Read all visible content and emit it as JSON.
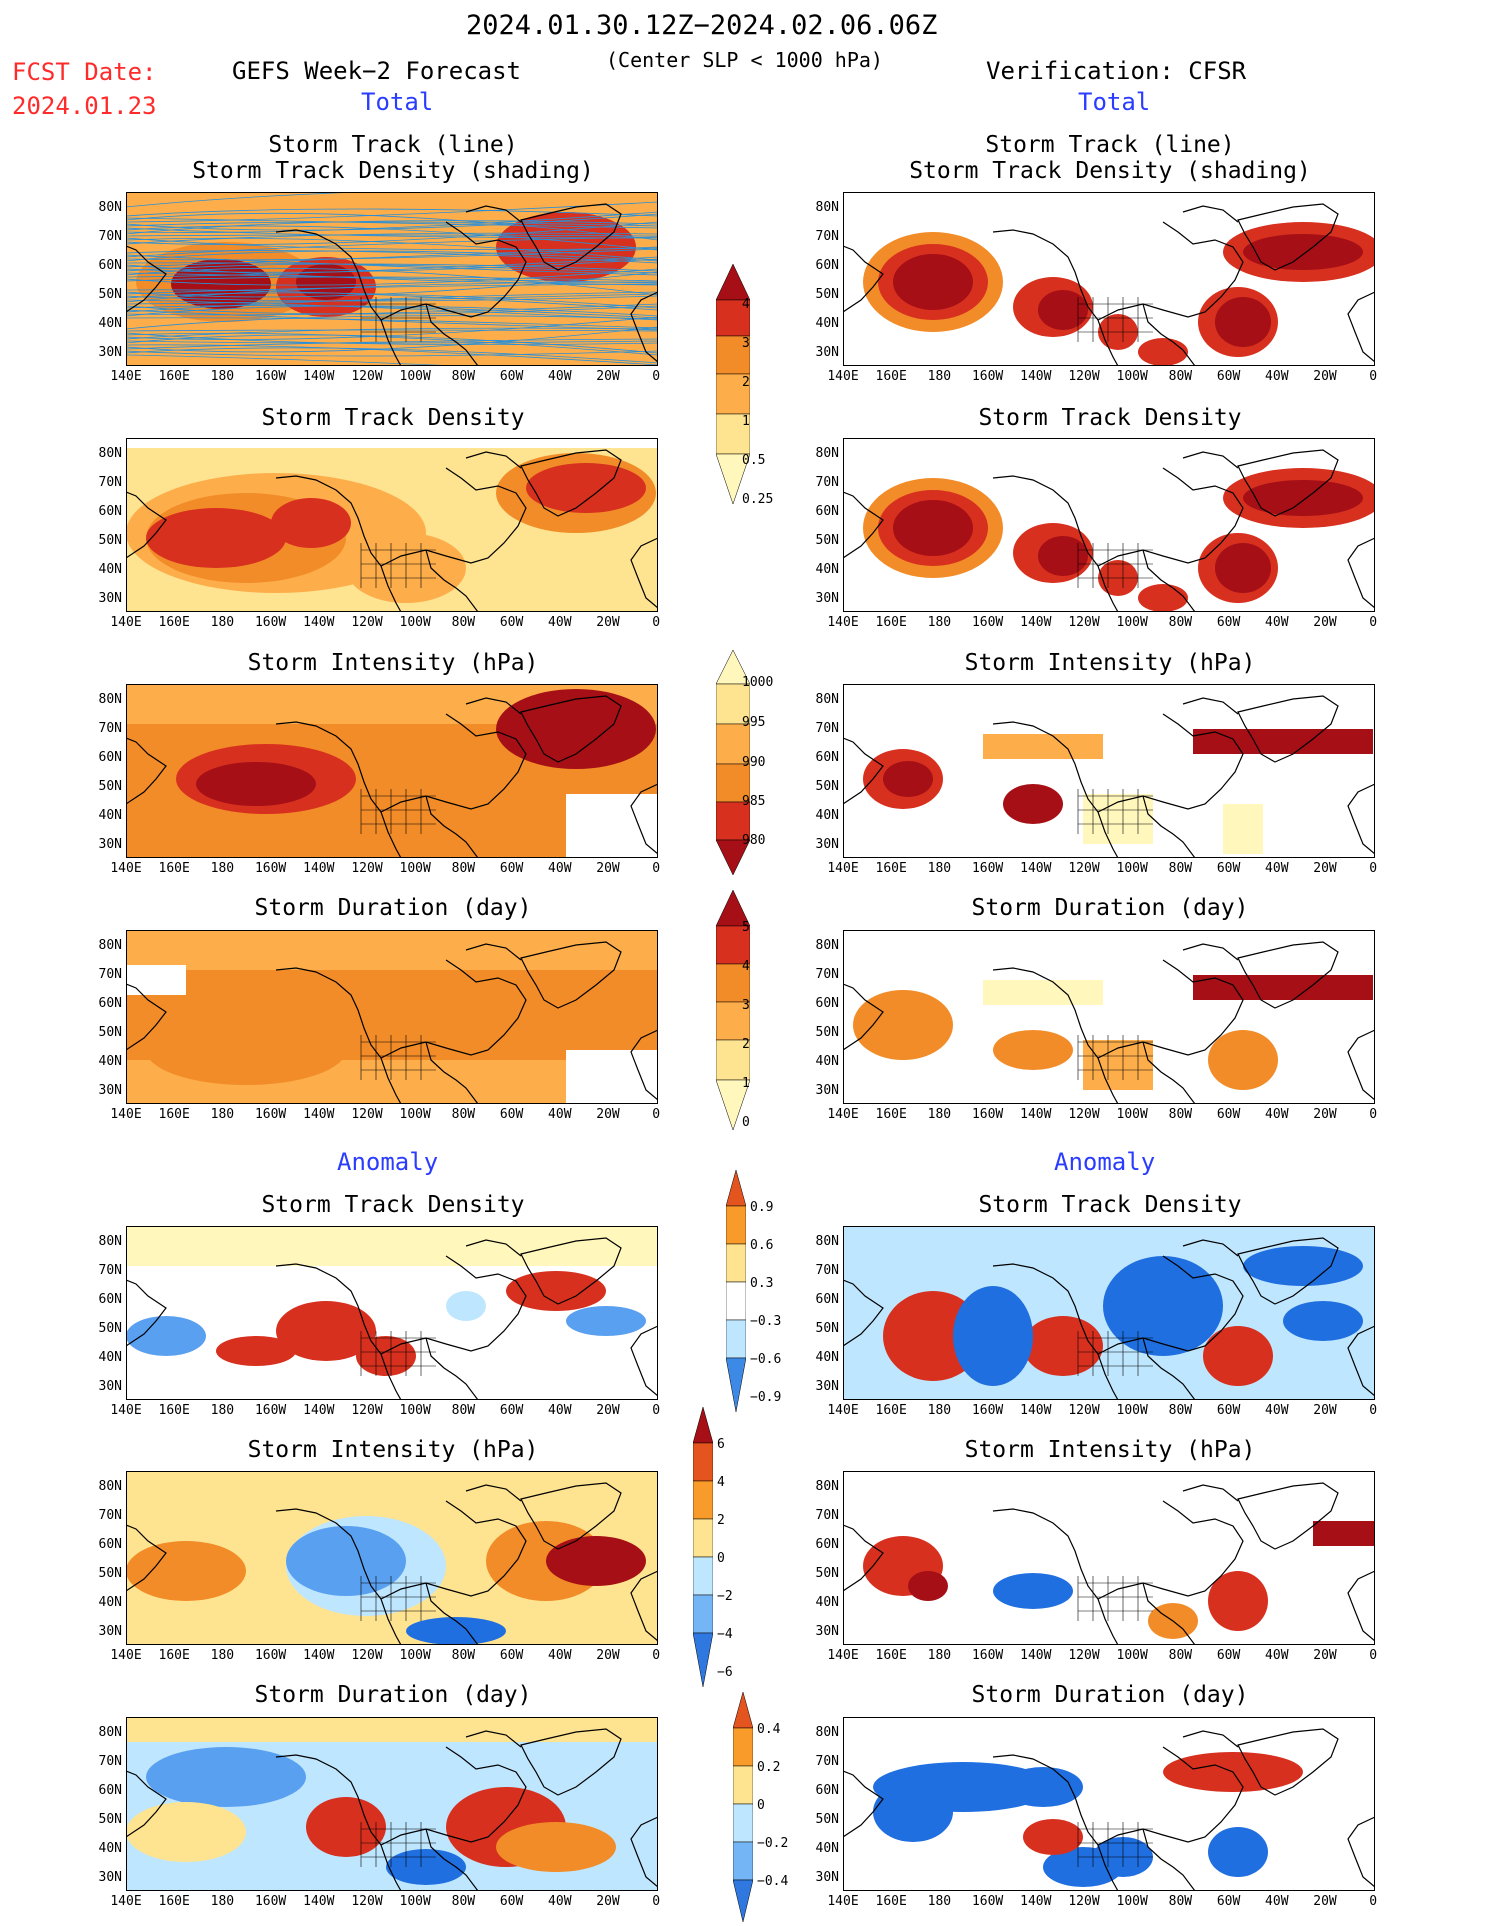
{
  "header": {
    "date_range": "2024.01.30.12Z−2024.02.06.06Z",
    "criterion": "(Center SLP < 1000 hPa)",
    "fcst_label": "FCST Date:",
    "fcst_date": "2024.01.23",
    "left_title": "GEFS Week−2 Forecast",
    "right_title": "Verification: CFSR"
  },
  "sections": {
    "total": "Total",
    "anomaly": "Anomaly"
  },
  "panel_titles": {
    "track_line": "Storm Track (line)",
    "track_shading": "Storm Track Density (shading)",
    "density": "Storm Track Density",
    "intensity": "Storm Intensity (hPa)",
    "duration": "Storm Duration (day)"
  },
  "axes": {
    "lat_labels": [
      "80N",
      "70N",
      "60N",
      "50N",
      "40N",
      "30N"
    ],
    "lon_labels": [
      "140E",
      "160E",
      "180",
      "160W",
      "140W",
      "120W",
      "100W",
      "80W",
      "60W",
      "40W",
      "20W",
      "0"
    ]
  },
  "colorbars": {
    "density_total": [
      "4",
      "3",
      "2",
      "1",
      "0.5",
      "0.25"
    ],
    "intensity_total": [
      "1000",
      "995",
      "990",
      "985",
      "980"
    ],
    "duration_total": [
      "5",
      "4",
      "3",
      "2",
      "1",
      "0"
    ],
    "density_anomaly": [
      "0.9",
      "0.6",
      "0.3",
      "−0.3",
      "−0.6",
      "−0.9"
    ],
    "intensity_anomaly": [
      "6",
      "4",
      "2",
      "0",
      "−2",
      "−4",
      "−6"
    ],
    "duration_anomaly": [
      "0.4",
      "0.2",
      "0",
      "−0.2",
      "−0.4"
    ]
  },
  "colors": {
    "darkred": "#a50f15",
    "red": "#d7301f",
    "orange": "#f28c28",
    "lightorange": "#fdae4b",
    "yellow": "#fee391",
    "paleyellow": "#fff7bc",
    "lightblue": "#bfe6ff",
    "midblue": "#5aa0f0",
    "blue": "#1f6fe0",
    "track": "#2b8fd6"
  }
}
